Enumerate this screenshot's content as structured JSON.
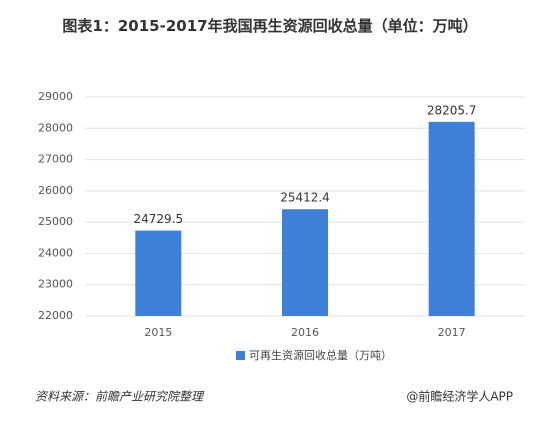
{
  "chart_data": {
    "type": "bar",
    "title": "图表1：2015-2017年我国再生资源回收总量（单位：万吨）",
    "categories": [
      "2015",
      "2016",
      "2017"
    ],
    "series": [
      {
        "name": "可再生资源回收总量（万吨）",
        "color": "#3d7fd9",
        "values": [
          24729.5,
          25412.4,
          28205.7
        ]
      }
    ],
    "ylim": [
      22000,
      29000
    ],
    "yticks": [
      22000,
      23000,
      24000,
      25000,
      26000,
      27000,
      28000,
      29000
    ],
    "grid": true,
    "legend": "bottom",
    "source": "资料来源：前瞻产业研究院整理",
    "credit": "@前瞻经济学人APP"
  }
}
